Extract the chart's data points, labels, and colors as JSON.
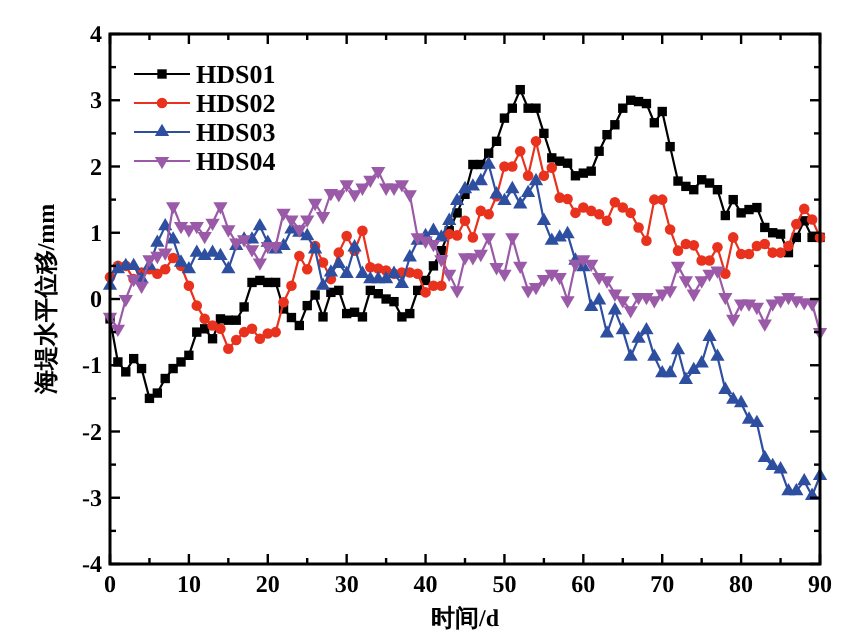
{
  "chart_data": {
    "type": "line",
    "xlabel": "时间/d",
    "ylabel": "海堤水平位移/mm",
    "x": [
      0,
      1,
      2,
      3,
      4,
      5,
      6,
      7,
      8,
      9,
      10,
      11,
      12,
      13,
      14,
      15,
      16,
      17,
      18,
      19,
      20,
      21,
      22,
      23,
      24,
      25,
      26,
      27,
      28,
      29,
      30,
      31,
      32,
      33,
      34,
      35,
      36,
      37,
      38,
      39,
      40,
      41,
      42,
      43,
      44,
      45,
      46,
      47,
      48,
      49,
      50,
      51,
      52,
      53,
      54,
      55,
      56,
      57,
      58,
      59,
      60,
      61,
      62,
      63,
      64,
      65,
      66,
      67,
      68,
      69,
      70,
      71,
      72,
      73,
      74,
      75,
      76,
      77,
      78,
      79,
      80,
      81,
      82,
      83,
      84,
      85,
      86,
      87,
      88,
      89,
      90
    ],
    "xlim": [
      0,
      90
    ],
    "ylim": [
      -4,
      4
    ],
    "xticks": [
      0,
      {
        "value": 5,
        "label": null
      },
      10,
      {
        "value": 15,
        "label": null
      },
      20,
      {
        "value": 25,
        "label": null
      },
      30,
      {
        "value": 35,
        "label": null
      },
      40,
      {
        "value": 45,
        "label": null
      },
      50,
      {
        "value": 55,
        "label": null
      },
      60,
      {
        "value": 65,
        "label": null
      },
      70,
      {
        "value": 75,
        "label": null
      },
      80,
      {
        "value": 85,
        "label": null
      },
      90
    ],
    "yticks": [
      -4,
      {
        "value": -3.5,
        "label": null
      },
      -3,
      {
        "value": -2.5,
        "label": null
      },
      -2,
      {
        "value": -1.5,
        "label": null
      },
      -1,
      {
        "value": -0.5,
        "label": null
      },
      0,
      {
        "value": 0.5,
        "label": null
      },
      1,
      {
        "value": 1.5,
        "label": null
      },
      2,
      {
        "value": 2.5,
        "label": null
      },
      3,
      {
        "value": 3.5,
        "label": null
      },
      4
    ],
    "grid": false,
    "legend": "top left",
    "line_style": "solid",
    "series": [
      {
        "name": "HDS01",
        "color": "#000000",
        "marker": "square",
        "values": [
          -0.3,
          -0.95,
          -1.1,
          -0.9,
          -1.05,
          -1.5,
          -1.42,
          -1.2,
          -1.05,
          -0.95,
          -0.85,
          -0.5,
          -0.45,
          -0.6,
          -0.3,
          -0.32,
          -0.32,
          -0.12,
          0.25,
          0.28,
          0.25,
          0.25,
          -0.15,
          -0.28,
          -0.4,
          -0.1,
          0.06,
          -0.27,
          0.1,
          0.13,
          -0.22,
          -0.2,
          -0.27,
          0.13,
          0.08,
          0,
          -0.04,
          -0.27,
          -0.22,
          0.13,
          0.28,
          0.5,
          0.73,
          1.03,
          1.3,
          1.58,
          2.03,
          2.03,
          2.2,
          2.38,
          2.73,
          2.88,
          3.16,
          2.88,
          2.88,
          2.5,
          2.13,
          2.08,
          2.05,
          1.86,
          1.9,
          1.93,
          2.23,
          2.48,
          2.63,
          2.88,
          3.0,
          2.98,
          2.95,
          2.66,
          2.83,
          2.3,
          1.78,
          1.7,
          1.65,
          1.8,
          1.75,
          1.65,
          1.26,
          1.5,
          1.3,
          1.35,
          1.38,
          1.08,
          1.0,
          0.98,
          0.7,
          0.93,
          1.18,
          0.93,
          0.93
        ]
      },
      {
        "name": "HDS02",
        "color": "#e8321e",
        "marker": "circle",
        "values": [
          0.33,
          0.5,
          0.5,
          0.3,
          0.4,
          0.45,
          0.38,
          0.45,
          0.62,
          0.5,
          0.2,
          -0.1,
          -0.3,
          -0.4,
          -0.45,
          -0.75,
          -0.62,
          -0.5,
          -0.45,
          -0.6,
          -0.52,
          -0.5,
          -0.05,
          0.2,
          0.65,
          0.45,
          0.8,
          0.55,
          0.3,
          0.7,
          0.95,
          0.73,
          1.03,
          0.48,
          0.46,
          0.43,
          0.38,
          0.4,
          0.4,
          0.38,
          0.1,
          0.2,
          0.2,
          0.98,
          0.96,
          1.18,
          0.93,
          1.33,
          1.28,
          1.55,
          2.0,
          2.0,
          2.23,
          1.86,
          2.38,
          1.86,
          1.98,
          1.53,
          1.51,
          1.3,
          1.38,
          1.33,
          1.28,
          1.18,
          1.46,
          1.38,
          1.3,
          1.08,
          0.88,
          1.5,
          1.5,
          1.05,
          0.73,
          0.83,
          0.81,
          0.58,
          0.58,
          0.78,
          0.38,
          0.93,
          0.68,
          0.68,
          0.8,
          0.83,
          0.7,
          0.7,
          0.8,
          1.13,
          1.36,
          1.2,
          0.93
        ]
      },
      {
        "name": "HDS03",
        "color": "#2e4fa0",
        "marker": "triangle",
        "values": [
          0.2,
          0.45,
          0.5,
          0.5,
          0.3,
          0.5,
          0.85,
          1.1,
          0.9,
          0.55,
          0.45,
          0.7,
          0.65,
          0.7,
          0.65,
          0.45,
          0.8,
          0.9,
          0.9,
          1.1,
          0.85,
          0.75,
          0.8,
          1.05,
          1.0,
          0.95,
          0.75,
          0.2,
          0.4,
          0.53,
          0.38,
          0.78,
          0.38,
          0.3,
          0.3,
          0.3,
          0.38,
          0.23,
          0.63,
          0.88,
          0.95,
          1.03,
          0.93,
          1.18,
          1.48,
          1.66,
          1.7,
          1.78,
          2.03,
          1.58,
          1.48,
          1.66,
          1.43,
          1.6,
          1.78,
          1.18,
          0.88,
          0.93,
          0.98,
          0.58,
          0.48,
          -0.12,
          -0.02,
          -0.52,
          -0.17,
          -0.47,
          -0.87,
          -0.6,
          -0.47,
          -0.87,
          -1.12,
          -1.12,
          -0.77,
          -1.22,
          -1.07,
          -0.97,
          -0.57,
          -0.87,
          -1.37,
          -1.52,
          -1.57,
          -1.82,
          -1.87,
          -2.4,
          -2.52,
          -2.57,
          -2.9,
          -2.9,
          -2.75,
          -2.97,
          -2.67
        ]
      },
      {
        "name": "HDS04",
        "color": "#9a5aa8",
        "marker": "triangle-down",
        "values": [
          -0.27,
          -0.45,
          0,
          0.3,
          0.2,
          0.6,
          0.65,
          0.7,
          1.4,
          1.1,
          1.05,
          1.1,
          0.95,
          1.15,
          1.4,
          1.05,
          0.85,
          0.9,
          0.75,
          0.55,
          0.8,
          0.8,
          1.3,
          1.2,
          1.05,
          1.2,
          1.45,
          1.25,
          1.6,
          1.58,
          1.73,
          1.58,
          1.68,
          1.8,
          1.93,
          1.68,
          1.68,
          1.73,
          1.58,
          0.93,
          0.88,
          0.83,
          0.6,
          0.38,
          0.13,
          0.63,
          0.63,
          0.68,
          0.93,
          0.48,
          0.38,
          0.93,
          0.5,
          0.13,
          0.18,
          0.3,
          0.38,
          0.33,
          -0.02,
          0.53,
          0.6,
          0.53,
          0.33,
          0.28,
          0.08,
          -0.02,
          -0.17,
          0.03,
          0.03,
          -0.02,
          0.08,
          0.13,
          0.5,
          0.28,
          0.08,
          0.28,
          0.38,
          0.43,
          0.03,
          -0.3,
          -0.07,
          -0.07,
          -0.12,
          -0.37,
          -0.07,
          -0.02,
          0.03,
          -0.02,
          -0.05,
          -0.07,
          -0.5
        ]
      }
    ]
  }
}
